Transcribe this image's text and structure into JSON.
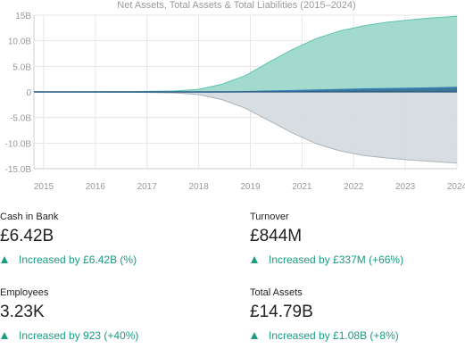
{
  "colors": {
    "positive": "#1a9c80",
    "assets_fill": "#9dd8cb",
    "assets_line": "#5ec4ae",
    "liabilities_fill": "#d6dbdf",
    "liabilities_line": "#a9b4bc",
    "net_assets_fill": "#2f6a8f",
    "net_assets_line": "#3a7eb5",
    "axis_text": "#9a9a9a",
    "grid": "#e6e6e6"
  },
  "chart_data": {
    "type": "area",
    "title": "Net Assets, Total Assets & Total Liabilities (2015–2024)",
    "x_ticks": [
      "2015",
      "2016",
      "2017",
      "2018",
      "2019",
      "2021",
      "2022",
      "2023",
      "2024"
    ],
    "y_ticks": [
      "15B",
      "10.0B",
      "5.0B",
      "0",
      "-5.0B",
      "-10.0B",
      "-15.0B"
    ],
    "ylim": [
      -15,
      15
    ],
    "x": [
      2015,
      2016,
      2017,
      2018,
      2018.5,
      2019,
      2019.5,
      2020,
      2020.5,
      2021,
      2021.5,
      2022,
      2022.5,
      2023,
      2023.5,
      2024
    ],
    "series": [
      {
        "name": "Total Assets",
        "values": [
          0,
          0.02,
          0.05,
          0.2,
          0.5,
          1.5,
          3.2,
          5.8,
          8.3,
          10.4,
          11.9,
          12.9,
          13.6,
          14.1,
          14.5,
          14.79
        ]
      },
      {
        "name": "Total Liabilities",
        "values": [
          0,
          -0.02,
          -0.05,
          -0.2,
          -0.5,
          -1.5,
          -3.2,
          -5.6,
          -8.0,
          -10.1,
          -11.5,
          -12.4,
          -12.9,
          -13.3,
          -13.6,
          -13.9
        ]
      },
      {
        "name": "Net Assets",
        "values": [
          0,
          0,
          0,
          0,
          0,
          0,
          0.05,
          0.15,
          0.25,
          0.35,
          0.45,
          0.55,
          0.62,
          0.7,
          0.78,
          0.89
        ]
      }
    ],
    "grid": true,
    "legend": "none"
  },
  "stats": [
    {
      "label": "Cash in Bank",
      "value": "£6.42B",
      "change": "Increased by £6.42B (%)"
    },
    {
      "label": "Turnover",
      "value": "£844M",
      "change": "Increased by £337M (+66%)"
    },
    {
      "label": "Employees",
      "value": "3.23K",
      "change": "Increased by 923 (+40%)"
    },
    {
      "label": "Total Assets",
      "value": "£14.79B",
      "change": "Increased by £1.08B (+8%)"
    }
  ]
}
